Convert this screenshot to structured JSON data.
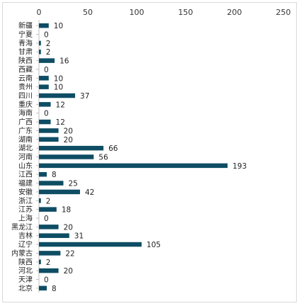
{
  "chart_data": {
    "type": "bar",
    "orientation": "horizontal",
    "categories": [
      "新疆",
      "宁夏",
      "青海",
      "甘肃",
      "陕西",
      "西藏",
      "云南",
      "贵州",
      "四川",
      "重庆",
      "海南",
      "广西",
      "广东",
      "湖南",
      "湖北",
      "河南",
      "山东",
      "江西",
      "福建",
      "安徽",
      "浙江",
      "江苏",
      "上海",
      "黑龙江",
      "吉林",
      "辽宁",
      "内蒙古",
      "陕西",
      "河北",
      "天津",
      "北京"
    ],
    "values": [
      10,
      0,
      2,
      2,
      16,
      0,
      10,
      10,
      37,
      12,
      0,
      12,
      20,
      20,
      66,
      56,
      193,
      8,
      25,
      42,
      2,
      18,
      0,
      20,
      31,
      105,
      22,
      2,
      20,
      0,
      8
    ],
    "x_ticks": [
      0,
      50,
      100,
      150,
      200,
      250
    ],
    "xlim": [
      0,
      250
    ],
    "title": "",
    "xlabel": "",
    "ylabel": "",
    "bar_color": "#0e4d64",
    "grid": false,
    "legend": "none"
  }
}
